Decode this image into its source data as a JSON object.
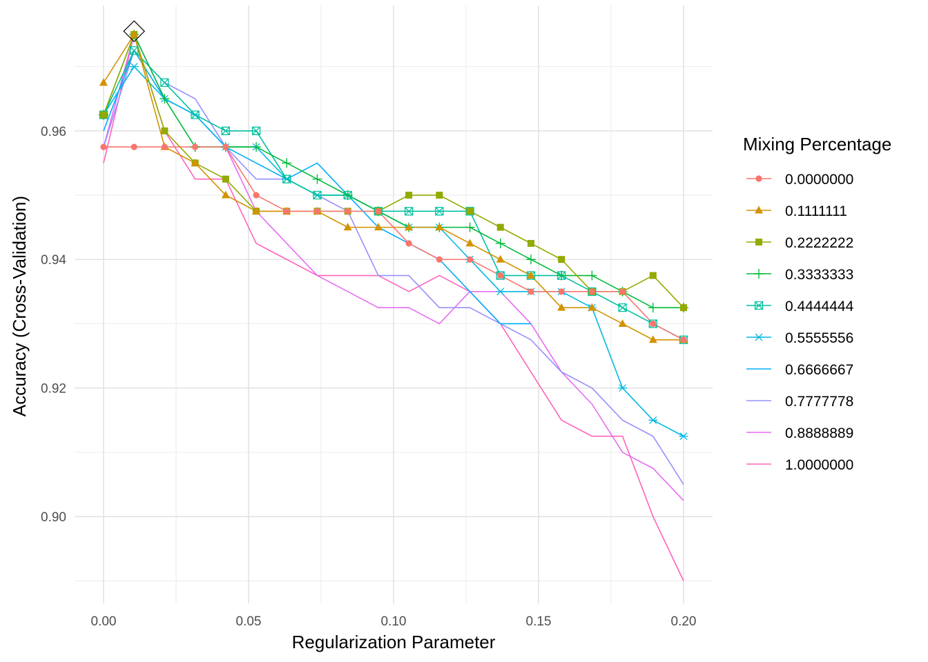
{
  "chart_data": {
    "type": "line",
    "title": "",
    "xlabel": "Regularization Parameter",
    "ylabel": "Accuracy (Cross-Validation)",
    "xlim": [
      -0.01,
      0.21
    ],
    "ylim": [
      0.8865,
      0.9795
    ],
    "x_ticks": [
      0.0,
      0.05,
      0.1,
      0.15,
      0.2
    ],
    "x_tick_labels": [
      "0.00",
      "0.05",
      "0.10",
      "0.15",
      "0.20"
    ],
    "y_ticks": [
      0.9,
      0.92,
      0.94,
      0.96
    ],
    "y_tick_labels": [
      "0.90",
      "0.92",
      "0.94",
      "0.96"
    ],
    "grid": true,
    "legend_title": "Mixing Percentage",
    "legend_position": "right",
    "x": [
      0,
      0.0105263,
      0.0210526,
      0.0315789,
      0.0421053,
      0.0526316,
      0.0631579,
      0.0736842,
      0.0842105,
      0.0947368,
      0.1052632,
      0.1157895,
      0.1263158,
      0.1368421,
      0.1473684,
      0.1578947,
      0.1684211,
      0.1789474,
      0.1894737,
      0.2
    ],
    "series": [
      {
        "name": "0.0000000",
        "color": "#F8766D",
        "marker": "circle",
        "values": [
          0.9575,
          0.9575,
          0.9575,
          0.9575,
          0.9575,
          0.95,
          0.9475,
          0.9475,
          0.9475,
          0.9475,
          0.9425,
          0.94,
          0.94,
          0.9375,
          0.935,
          0.935,
          0.935,
          0.935,
          0.93,
          0.9275
        ]
      },
      {
        "name": "0.1111111",
        "color": "#D39200",
        "marker": "triangle",
        "values": [
          0.9675,
          0.975,
          0.9575,
          0.955,
          0.95,
          0.9475,
          0.9475,
          0.9475,
          0.945,
          0.945,
          0.945,
          0.945,
          0.9425,
          0.94,
          0.9375,
          0.9325,
          0.9325,
          0.93,
          0.9275,
          0.9275
        ]
      },
      {
        "name": "0.2222222",
        "color": "#93AA00",
        "marker": "square",
        "values": [
          0.9625,
          0.975,
          0.96,
          0.955,
          0.9525,
          0.9475,
          0.9475,
          0.9475,
          0.9475,
          0.9475,
          0.95,
          0.95,
          0.9475,
          0.945,
          0.9425,
          0.94,
          0.935,
          0.935,
          0.9375,
          0.9325
        ]
      },
      {
        "name": "0.3333333",
        "color": "#00BA38",
        "marker": "plus",
        "values": [
          0.9625,
          0.975,
          0.965,
          0.9575,
          0.9575,
          0.9575,
          0.955,
          0.9525,
          0.95,
          0.9475,
          0.945,
          0.945,
          0.945,
          0.9425,
          0.94,
          0.9375,
          0.9375,
          0.935,
          0.9325,
          0.9325
        ]
      },
      {
        "name": "0.4444444",
        "color": "#00C19F",
        "marker": "squarecross",
        "values": [
          0.9625,
          0.9725,
          0.9675,
          0.9625,
          0.96,
          0.96,
          0.9525,
          0.95,
          0.95,
          0.9475,
          0.9475,
          0.9475,
          0.9475,
          0.9375,
          0.9375,
          0.9375,
          0.935,
          0.9325,
          0.93,
          0.9275
        ]
      },
      {
        "name": "0.5555556",
        "color": "#00B9E3",
        "marker": "asterisk",
        "values": [
          0.9625,
          0.97,
          0.965,
          0.9625,
          0.9575,
          0.9575,
          0.9525,
          0.95,
          0.95,
          0.9475,
          0.945,
          0.945,
          0.94,
          0.935,
          0.935,
          0.935,
          0.9325,
          0.92,
          0.915,
          0.9125
        ]
      },
      {
        "name": "0.6666667",
        "color": "#00ADFA",
        "marker": "none",
        "values": [
          0.96,
          0.9725,
          0.965,
          0.9625,
          0.9575,
          0.955,
          0.9525,
          0.955,
          0.95,
          0.945,
          0.9425,
          0.94,
          0.935,
          0.93,
          0.93,
          null,
          null,
          null,
          null,
          0.905
        ]
      },
      {
        "name": "0.7777778",
        "color": "#9590FF",
        "marker": "none",
        "values": [
          0.9575,
          0.9725,
          0.9675,
          0.965,
          0.9575,
          0.9525,
          0.9525,
          0.95,
          0.9475,
          0.9375,
          0.9375,
          0.9325,
          0.9325,
          0.93,
          0.9275,
          0.9225,
          0.92,
          0.915,
          0.9125,
          0.905
        ]
      },
      {
        "name": "0.8888889",
        "color": "#E76BF3",
        "marker": "none",
        "values": [
          0.9575,
          0.975,
          0.965,
          0.9625,
          0.9575,
          0.9475,
          0.9425,
          0.9375,
          0.935,
          0.9325,
          0.9325,
          0.93,
          0.935,
          0.935,
          0.93,
          0.9225,
          0.9175,
          0.91,
          0.9075,
          0.9025
        ]
      },
      {
        "name": "1.0000000",
        "color": "#FF62BC",
        "marker": "none",
        "values": [
          0.955,
          0.975,
          0.96,
          0.9525,
          0.9525,
          0.9425,
          0.94,
          0.9375,
          0.9375,
          0.9375,
          0.935,
          0.9375,
          0.935,
          0.93,
          0.9225,
          0.915,
          0.9125,
          0.9125,
          0.9,
          0.89
        ]
      }
    ],
    "highlight": {
      "x": 0.0105263,
      "y": 0.9755,
      "marker": "diamond"
    }
  }
}
